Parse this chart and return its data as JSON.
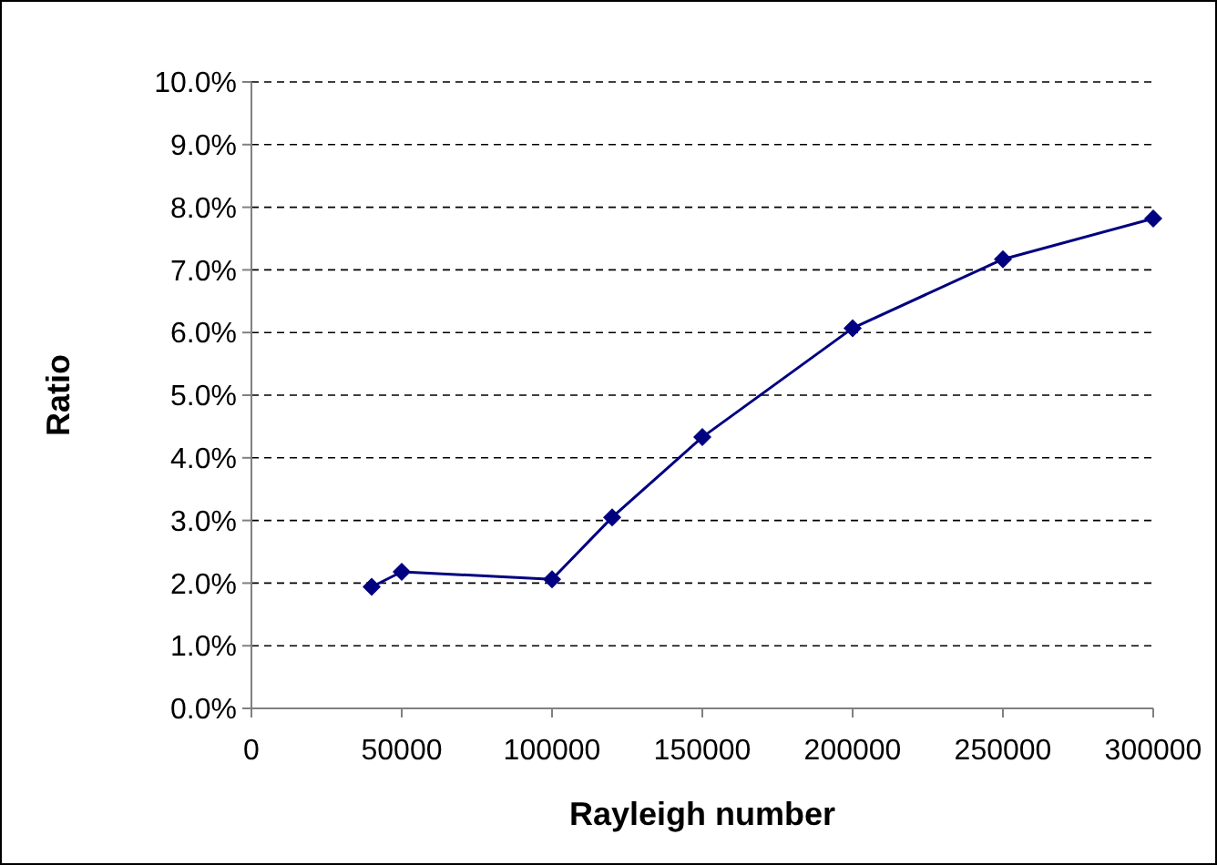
{
  "chart_data": {
    "type": "line",
    "xlabel": "Rayleigh number",
    "ylabel": "Ratio",
    "x": [
      40000,
      50000,
      100000,
      120000,
      150000,
      200000,
      250000,
      300000
    ],
    "series": [
      {
        "color": "#000080",
        "values": [
          1.94,
          2.18,
          2.06,
          3.05,
          4.33,
          6.07,
          7.17,
          7.82
        ]
      }
    ],
    "xlim": [
      0,
      300000
    ],
    "xticks": [
      0,
      50000,
      100000,
      150000,
      200000,
      250000,
      300000
    ],
    "ylim": [
      0,
      10
    ],
    "yticks": [
      {
        "value": 0,
        "label": "0.0%"
      },
      {
        "value": 1,
        "label": "1.0%"
      },
      {
        "value": 2,
        "label": "2.0%"
      },
      {
        "value": 3,
        "label": "3.0%"
      },
      {
        "value": 4,
        "label": "4.0%"
      },
      {
        "value": 5,
        "label": "5.0%"
      },
      {
        "value": 6,
        "label": "6.0%"
      },
      {
        "value": 7,
        "label": "7.0%"
      },
      {
        "value": 8,
        "label": "8.0%"
      },
      {
        "value": 9,
        "label": "9.0%"
      },
      {
        "value": 10,
        "label": "10.0%"
      }
    ],
    "grid": "y",
    "marker": "diamond",
    "line_style": "solid"
  }
}
